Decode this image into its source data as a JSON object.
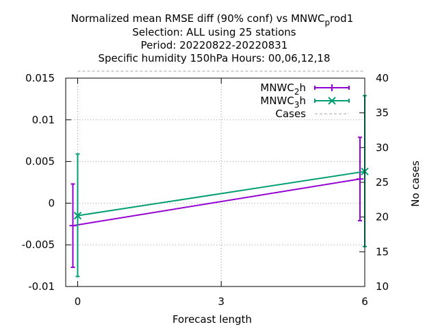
{
  "chart_data": {
    "type": "line",
    "title_lines": [
      "Normalized mean RMSE diff (90% conf) vs MNWC",
      "Selection: ALL using    25 stations",
      "Period: 20220822-20220831",
      "Specific humidity 150hPa   Hours:  00,06,12,18"
    ],
    "title_sub": "p",
    "title_tail": "rod1",
    "xlabel": "Forecast length",
    "ylabel": "",
    "y2label": "No cases",
    "xlim": [
      -0.25,
      6
    ],
    "ylim": [
      -0.01,
      0.015
    ],
    "y2lim": [
      10,
      40
    ],
    "xticks": [
      0,
      3,
      6
    ],
    "yticks": [
      -0.01,
      -0.005,
      0,
      0.005,
      0.01,
      0.015
    ],
    "ytick_labels": [
      "-0.01",
      "-0.005",
      "0",
      "0.005",
      "0.01",
      "0.015"
    ],
    "y2ticks": [
      10,
      15,
      20,
      25,
      30,
      35,
      40
    ],
    "grid": true,
    "legend_position": "top-right",
    "series": [
      {
        "name": "MNWC",
        "name_sub": "2",
        "name_tail": "h",
        "color": "#9400d3",
        "marker": "plus",
        "x": [
          -0.1,
          5.9
        ],
        "y": [
          -0.0027,
          0.0029
        ],
        "err_low": [
          -0.0077,
          -0.0021
        ],
        "err_high": [
          0.0023,
          0.0079
        ]
      },
      {
        "name": "MNWC",
        "name_sub": "3",
        "name_tail": "h",
        "color": "#009e73",
        "marker": "cross",
        "x": [
          0.0,
          6.0
        ],
        "y": [
          -0.0015,
          0.0038
        ],
        "err_low": [
          -0.0088,
          -0.0052
        ],
        "err_high": [
          0.0059,
          0.0129
        ]
      },
      {
        "name": "Cases",
        "color": "#a0a0a0",
        "style": "dashed",
        "x": [
          0,
          6
        ],
        "y2": [
          41,
          41
        ]
      }
    ]
  }
}
